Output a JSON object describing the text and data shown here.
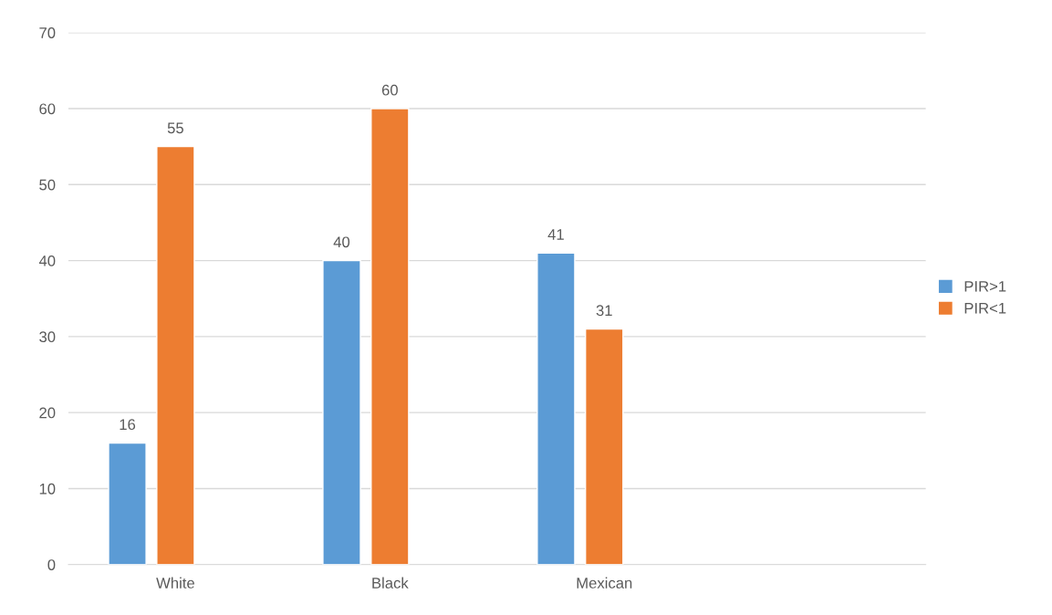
{
  "chart_data": {
    "type": "bar",
    "categories": [
      "White",
      "Black",
      "Mexican",
      null
    ],
    "series": [
      {
        "name": "PIR>1",
        "color": "#5b9bd5",
        "values": [
          16,
          40,
          41,
          null
        ]
      },
      {
        "name": "PIR<1",
        "color": "#ed7d31",
        "values": [
          55,
          60,
          31,
          null
        ]
      }
    ],
    "ylim": [
      0,
      70
    ],
    "yticks": [
      0,
      10,
      20,
      30,
      40,
      50,
      60,
      70
    ],
    "grid": "y",
    "legend": "right",
    "data_labels": true
  }
}
